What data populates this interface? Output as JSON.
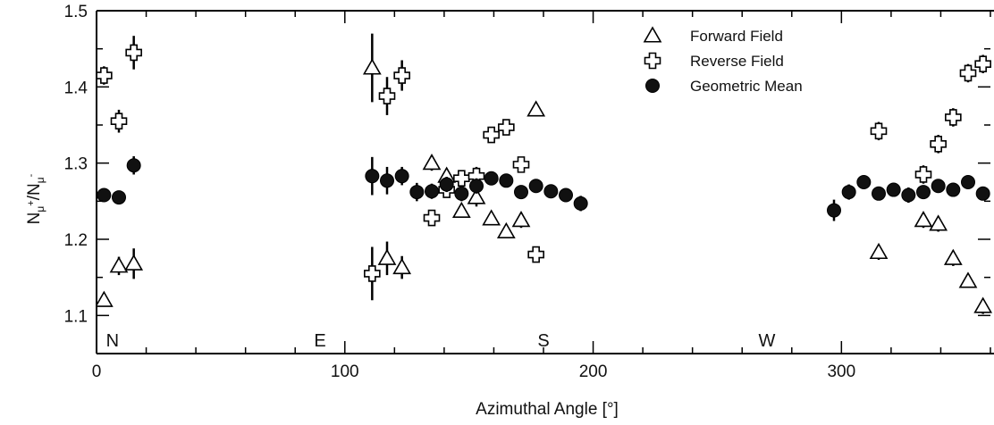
{
  "chart_data": {
    "type": "scatter",
    "title": "",
    "xlabel": "Azimuthal Angle [°]",
    "ylabel": {
      "base": "N",
      "num_sub": "μ",
      "num_sup": "+",
      "sep": "/",
      "den_sub": "μ",
      "den_sup": "-"
    },
    "xlim": [
      0,
      360
    ],
    "ylim": [
      1.05,
      1.5
    ],
    "x_ticks": [
      0,
      100,
      200,
      300
    ],
    "x_tick_labels": [
      "0",
      "100",
      "200",
      "300"
    ],
    "y_ticks": [
      1.1,
      1.2,
      1.3,
      1.4,
      1.5
    ],
    "y_tick_labels": [
      "1.1",
      "1.2",
      "1.3",
      "1.4",
      "1.5"
    ],
    "grid": false,
    "legend_position": "top-right",
    "direction_labels": [
      {
        "text": "N",
        "x": 5
      },
      {
        "text": "E",
        "x": 90
      },
      {
        "text": "S",
        "x": 180
      },
      {
        "text": "W",
        "x": 270
      }
    ],
    "series": [
      {
        "name": "Forward Field",
        "marker": "open-triangle",
        "x": [
          3,
          9,
          15,
          111,
          117,
          123,
          135,
          141,
          147,
          153,
          159,
          165,
          171,
          177,
          315,
          333,
          339,
          345,
          351,
          357
        ],
        "y": [
          1.12,
          1.165,
          1.168,
          1.425,
          1.175,
          1.163,
          1.3,
          1.283,
          1.237,
          1.255,
          1.227,
          1.21,
          1.225,
          1.37,
          1.183,
          1.225,
          1.22,
          1.175,
          1.145,
          1.112
        ],
        "err": [
          0.008,
          0.012,
          0.02,
          0.045,
          0.022,
          0.015,
          0.01,
          0.01,
          0.008,
          0.012,
          0.008,
          0.008,
          0.01,
          0.008,
          0.01,
          0.01,
          0.01,
          0.01,
          0.008,
          0.01
        ]
      },
      {
        "name": "Reverse Field",
        "marker": "open-cross",
        "x": [
          3,
          9,
          15,
          111,
          117,
          123,
          135,
          141,
          147,
          153,
          159,
          165,
          171,
          177,
          315,
          333,
          339,
          345,
          351,
          357
        ],
        "y": [
          1.415,
          1.355,
          1.445,
          1.155,
          1.388,
          1.415,
          1.228,
          1.265,
          1.28,
          1.283,
          1.337,
          1.347,
          1.298,
          1.18,
          1.342,
          1.285,
          1.325,
          1.36,
          1.418,
          1.43
        ],
        "err": [
          0.012,
          0.015,
          0.022,
          0.035,
          0.025,
          0.02,
          0.01,
          0.01,
          0.01,
          0.012,
          0.008,
          0.008,
          0.01,
          0.008,
          0.012,
          0.012,
          0.012,
          0.012,
          0.012,
          0.012
        ]
      },
      {
        "name": "Geometric Mean",
        "marker": "filled-circle",
        "x": [
          3,
          9,
          15,
          111,
          117,
          123,
          129,
          135,
          141,
          147,
          153,
          159,
          165,
          171,
          177,
          183,
          189,
          195,
          297,
          303,
          309,
          315,
          321,
          327,
          333,
          339,
          345,
          351,
          357
        ],
        "y": [
          1.258,
          1.255,
          1.297,
          1.283,
          1.277,
          1.283,
          1.262,
          1.263,
          1.272,
          1.26,
          1.27,
          1.28,
          1.277,
          1.262,
          1.27,
          1.263,
          1.258,
          1.247,
          1.238,
          1.262,
          1.275,
          1.26,
          1.265,
          1.258,
          1.262,
          1.27,
          1.265,
          1.275,
          1.26
        ],
        "err": [
          0.008,
          0.008,
          0.012,
          0.025,
          0.018,
          0.012,
          0.012,
          0.01,
          0.01,
          0.01,
          0.01,
          0.008,
          0.008,
          0.008,
          0.008,
          0.008,
          0.008,
          0.01,
          0.014,
          0.01,
          0.008,
          0.008,
          0.008,
          0.01,
          0.008,
          0.008,
          0.008,
          0.008,
          0.008
        ]
      }
    ]
  }
}
